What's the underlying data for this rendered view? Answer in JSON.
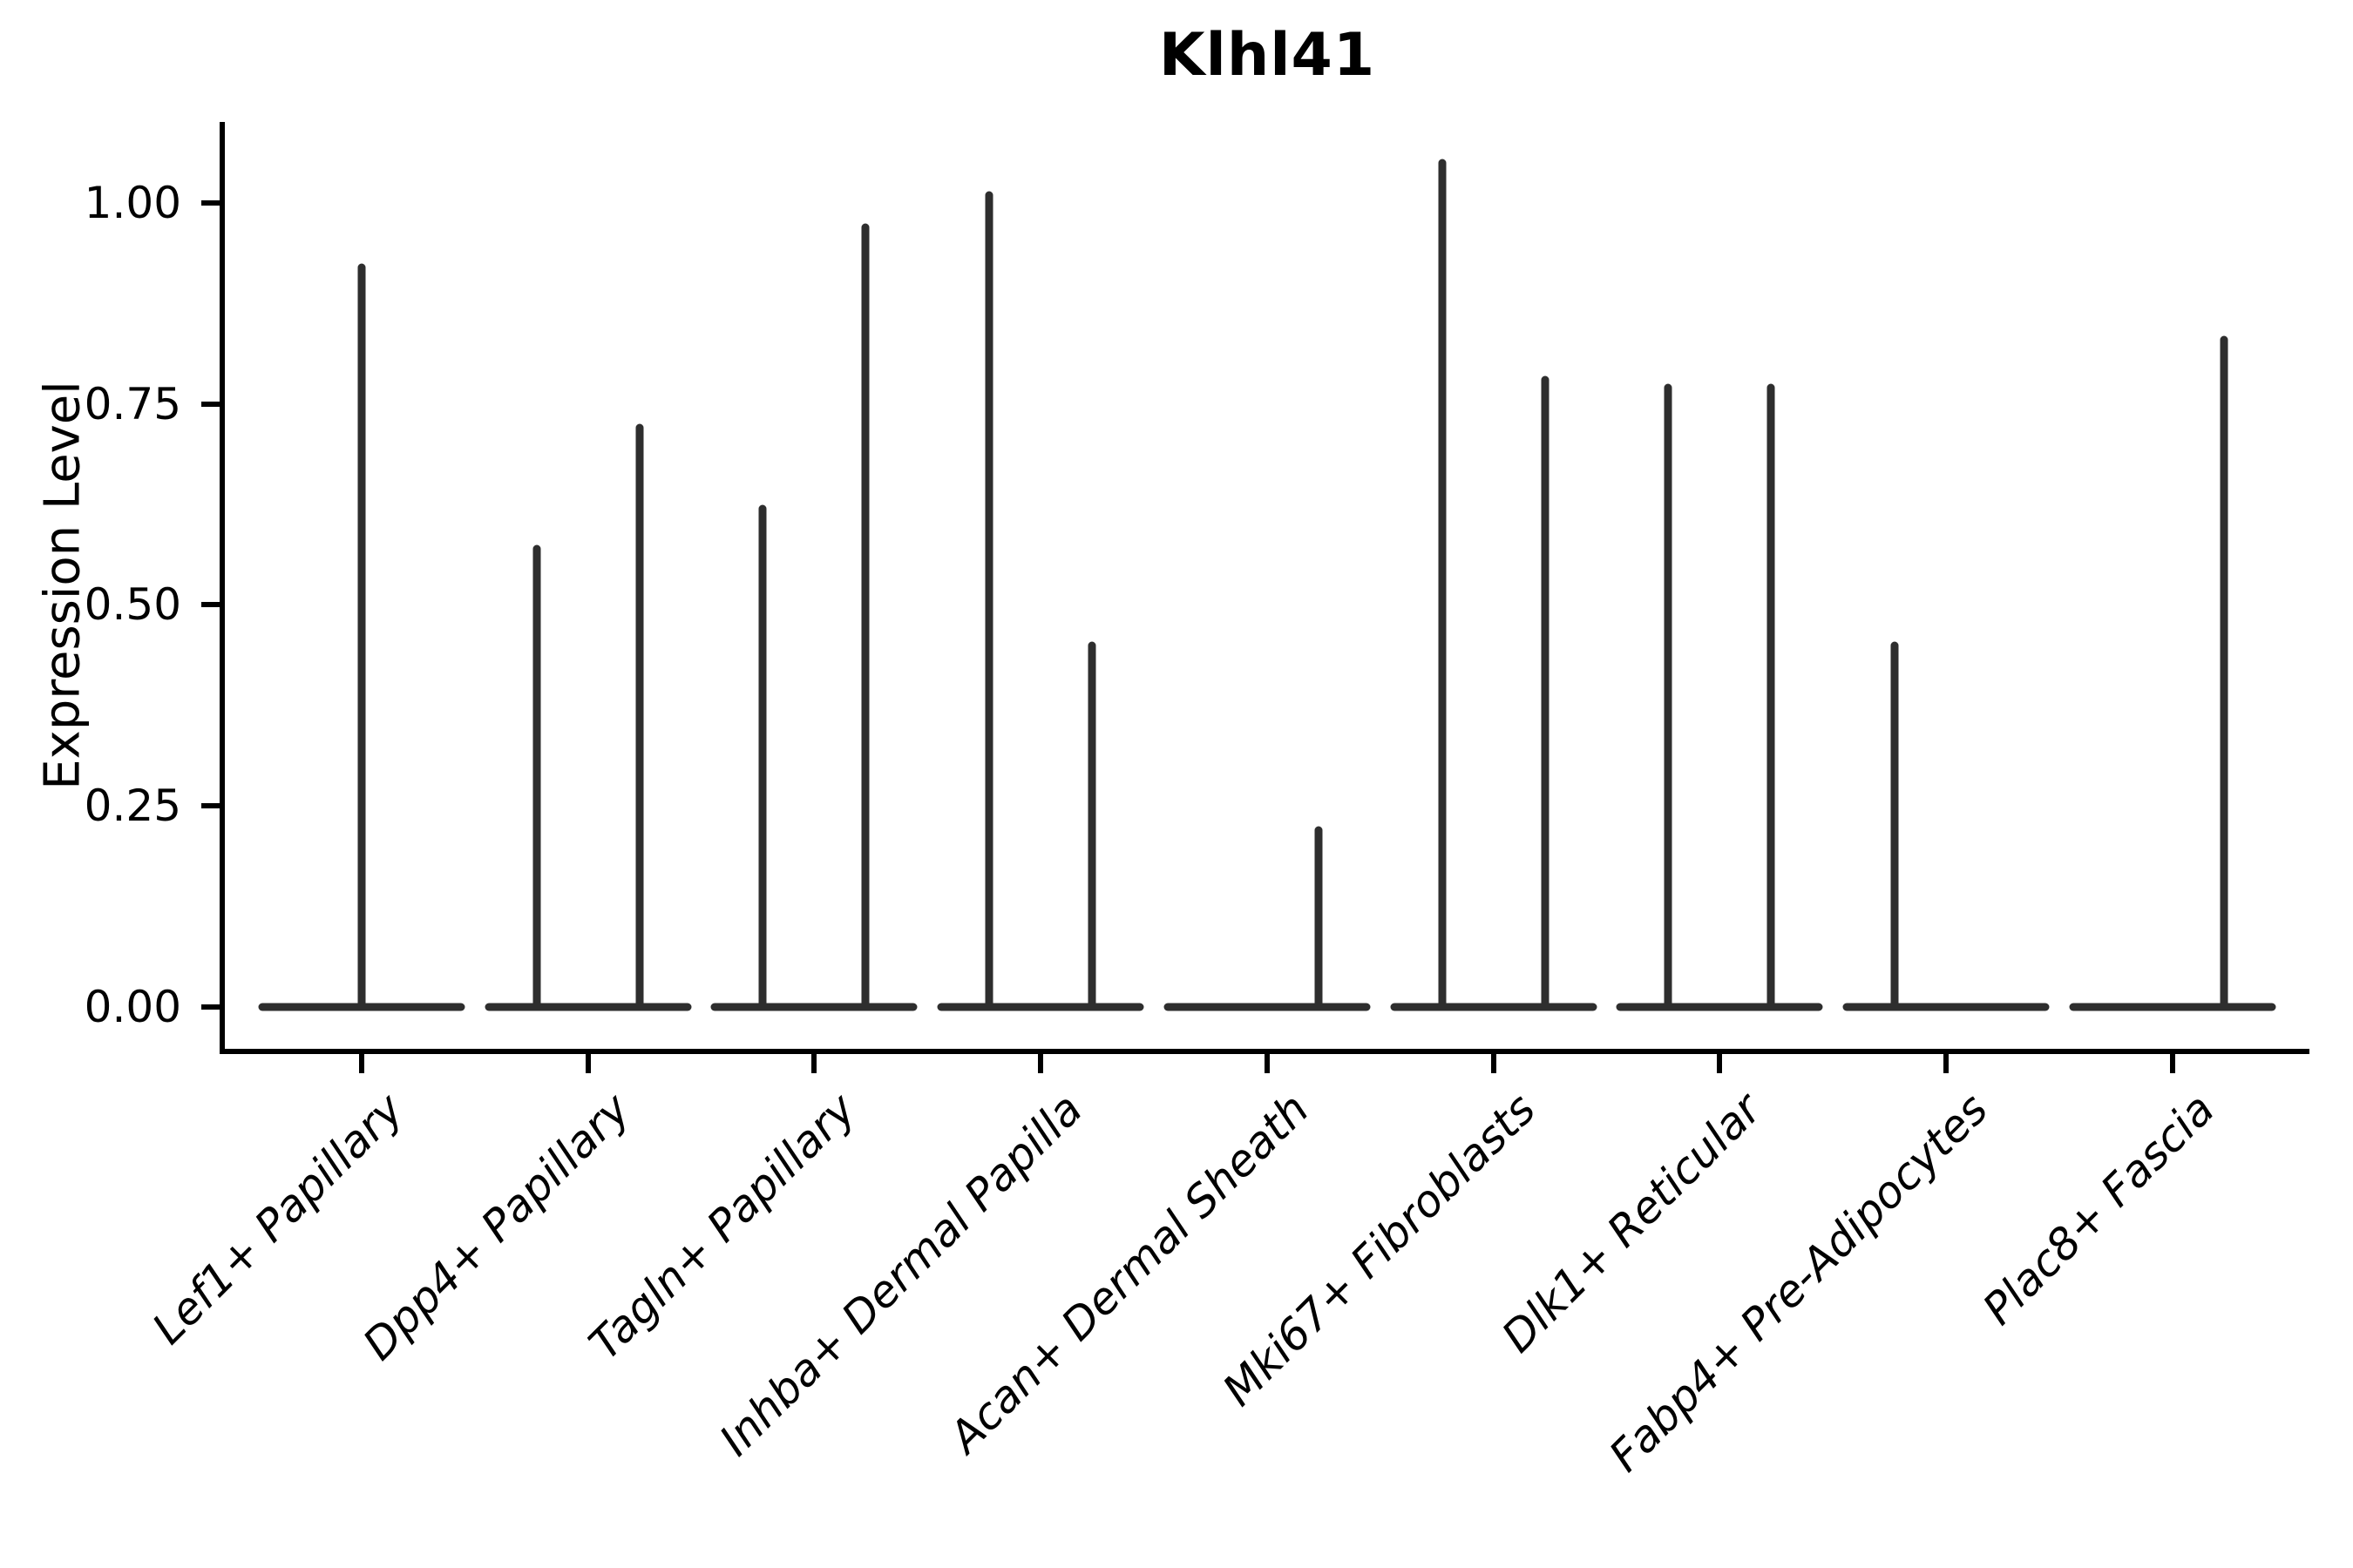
{
  "title": "Klhl41",
  "chart_data": {
    "type": "violin",
    "title": "Klhl41",
    "ylabel": "Expression Level",
    "xlabel": "",
    "ytick_labels": [
      "0.00",
      "0.25",
      "0.50",
      "0.75",
      "1.00"
    ],
    "yticks": [
      0.0,
      0.25,
      0.5,
      0.75,
      1.0
    ],
    "ylim": [
      -0.055,
      1.098
    ],
    "grid": false,
    "legend": null,
    "categories": [
      "Lef1+ Papillary",
      "Dpp4+ Papillary",
      "Tagln+ Papillary",
      "Inhba+ Dermal Papilla",
      "Acan+ Dermal Sheath",
      "Mki67+ Fibroblasts",
      "Dlk1+ Reticular",
      "Fabp4+ Pre-Adipocytes",
      "Plac8+ Fascia"
    ],
    "violins": [
      {
        "category": "Lef1+ Papillary",
        "baseline": 0.0,
        "spikes": [
          {
            "position": "center",
            "max": 0.92
          }
        ]
      },
      {
        "category": "Dpp4+ Papillary",
        "baseline": 0.0,
        "spikes": [
          {
            "position": "left",
            "max": 0.57
          },
          {
            "position": "right",
            "max": 0.72
          }
        ]
      },
      {
        "category": "Tagln+ Papillary",
        "baseline": 0.0,
        "spikes": [
          {
            "position": "left",
            "max": 0.62
          },
          {
            "position": "right",
            "max": 0.97
          }
        ]
      },
      {
        "category": "Inhba+ Dermal Papilla",
        "baseline": 0.0,
        "spikes": [
          {
            "position": "left",
            "max": 1.01
          },
          {
            "position": "right",
            "max": 0.45
          }
        ]
      },
      {
        "category": "Acan+ Dermal Sheath",
        "baseline": 0.0,
        "spikes": [
          {
            "position": "right",
            "max": 0.22
          }
        ]
      },
      {
        "category": "Mki67+ Fibroblasts",
        "baseline": 0.0,
        "spikes": [
          {
            "position": "left",
            "max": 1.05
          },
          {
            "position": "right",
            "max": 0.78
          }
        ]
      },
      {
        "category": "Dlk1+ Reticular",
        "baseline": 0.0,
        "spikes": [
          {
            "position": "left",
            "max": 0.77
          },
          {
            "position": "right",
            "max": 0.77
          }
        ]
      },
      {
        "category": "Fabp4+ Pre-Adipocytes",
        "baseline": 0.0,
        "spikes": [
          {
            "position": "left",
            "max": 0.45
          }
        ]
      },
      {
        "category": "Plac8+ Fascia",
        "baseline": 0.0,
        "spikes": [
          {
            "position": "right",
            "max": 0.83
          }
        ]
      }
    ],
    "colors": {
      "violin": "#2e2e2e",
      "axis": "#000000",
      "text": "#000000",
      "background": "#ffffff"
    }
  }
}
